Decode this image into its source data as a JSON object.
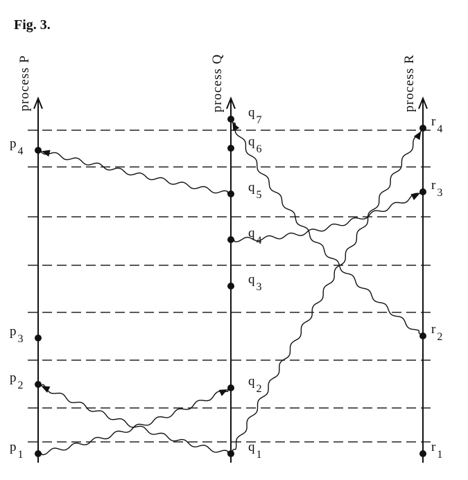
{
  "title": "Fig. 3.",
  "processes": [
    {
      "label": "process P",
      "events": [
        {
          "base": "p",
          "sub": "1"
        },
        {
          "base": "p",
          "sub": "2"
        },
        {
          "base": "p",
          "sub": "3"
        },
        {
          "base": "p",
          "sub": "4"
        }
      ]
    },
    {
      "label": "process Q",
      "events": [
        {
          "base": "q",
          "sub": "1"
        },
        {
          "base": "q",
          "sub": "2"
        },
        {
          "base": "q",
          "sub": "3"
        },
        {
          "base": "q",
          "sub": "4"
        },
        {
          "base": "q",
          "sub": "5"
        },
        {
          "base": "q",
          "sub": "6"
        },
        {
          "base": "q",
          "sub": "7"
        }
      ]
    },
    {
      "label": "process R",
      "events": [
        {
          "base": "r",
          "sub": "1"
        },
        {
          "base": "r",
          "sub": "2"
        },
        {
          "base": "r",
          "sub": "3"
        },
        {
          "base": "r",
          "sub": "4"
        }
      ]
    }
  ]
}
